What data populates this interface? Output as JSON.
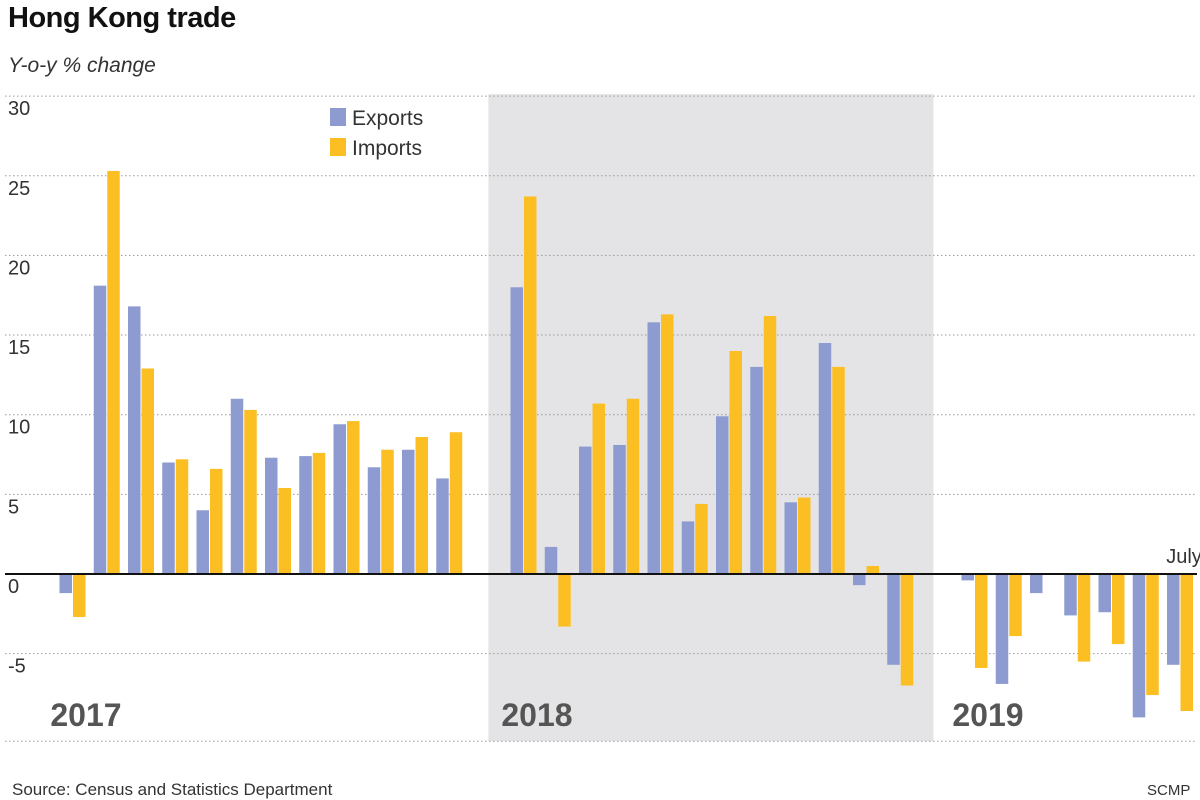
{
  "header": {
    "title": "Hong Kong trade",
    "subtitle": "Y-o-y % change"
  },
  "footer": {
    "source": "Source: Census and Statistics Department",
    "credit": "SCMP"
  },
  "colors": {
    "exports": "#8d9bd0",
    "imports": "#fbbf24",
    "shade": "#e4e4e6",
    "grid": "#9a9a9a",
    "zero": "#111111",
    "year_label": "#555555"
  },
  "chart_data": {
    "type": "bar",
    "title": "Hong Kong trade",
    "ylabel": "Y-o-y % change",
    "xlabel": "",
    "ylim": [
      -10,
      30
    ],
    "yticks": [
      -5,
      0,
      5,
      10,
      15,
      20,
      25,
      30
    ],
    "ytick_labels": [
      "-5",
      "0",
      "5",
      "10",
      "15",
      "20",
      "25",
      "30"
    ],
    "grid": true,
    "legend": {
      "position": "top-center",
      "entries": [
        "Exports",
        "Imports"
      ]
    },
    "annotation": "July",
    "categories": [
      "2017-01",
      "2017-02",
      "2017-03",
      "2017-04",
      "2017-05",
      "2017-06",
      "2017-07",
      "2017-08",
      "2017-09",
      "2017-10",
      "2017-11",
      "2017-12",
      "2018-01",
      "2018-02",
      "2018-03",
      "2018-04",
      "2018-05",
      "2018-06",
      "2018-07",
      "2018-08",
      "2018-09",
      "2018-10",
      "2018-11",
      "2018-12",
      "2019-01",
      "2019-02",
      "2019-03",
      "2019-04",
      "2019-05",
      "2019-06",
      "2019-07"
    ],
    "series": [
      {
        "name": "Exports",
        "values": [
          -1.2,
          18.1,
          16.8,
          7.0,
          4.0,
          11.0,
          7.3,
          7.4,
          9.4,
          6.7,
          7.8,
          6.0,
          18.0,
          1.7,
          8.0,
          8.1,
          15.8,
          3.3,
          9.9,
          13.0,
          4.5,
          14.5,
          -0.7,
          -5.7,
          -0.4,
          -6.9,
          -1.2,
          -2.6,
          -2.4,
          -9.0,
          -5.7
        ]
      },
      {
        "name": "Imports",
        "values": [
          -2.7,
          25.3,
          12.9,
          7.2,
          6.6,
          10.3,
          5.4,
          7.6,
          9.6,
          7.8,
          8.6,
          8.9,
          23.7,
          -3.3,
          10.7,
          11.0,
          16.3,
          4.4,
          14.0,
          16.2,
          4.8,
          13.0,
          0.5,
          -7.0,
          -5.9,
          -3.9,
          0.0,
          -5.5,
          -4.4,
          -7.6,
          -8.6
        ]
      }
    ],
    "periods": [
      {
        "label": "2017",
        "start": 0,
        "end": 11,
        "shaded": false
      },
      {
        "label": "2018",
        "start": 12,
        "end": 23,
        "shaded": true
      },
      {
        "label": "2019",
        "start": 24,
        "end": 30,
        "shaded": false
      }
    ]
  }
}
